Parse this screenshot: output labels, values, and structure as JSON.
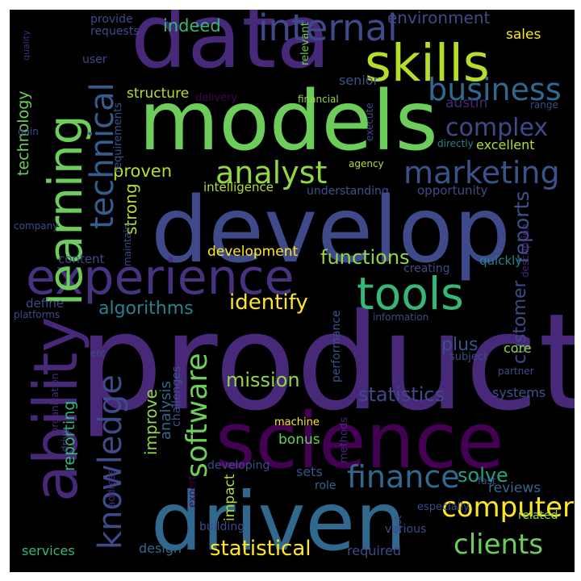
{
  "words": [
    {
      "text": "product",
      "color": "#482878"
    },
    {
      "text": "develop",
      "color": "#3e4a89"
    },
    {
      "text": "models",
      "color": "#6ccd5a"
    },
    {
      "text": "data",
      "color": "#482878"
    },
    {
      "text": "science",
      "color": "#440154"
    },
    {
      "text": "driven",
      "color": "#31688e"
    },
    {
      "text": "experience",
      "color": "#46327e"
    },
    {
      "text": "skills",
      "color": "#b5de2b"
    },
    {
      "text": "learning",
      "color": "#6ccd5a"
    },
    {
      "text": "ability",
      "color": "#482878"
    },
    {
      "text": "tools",
      "color": "#35b779"
    },
    {
      "text": "knowledge",
      "color": "#3e4a89"
    },
    {
      "text": "technical",
      "color": "#365c8d"
    },
    {
      "text": "internal",
      "color": "#3e4a89"
    },
    {
      "text": "business",
      "color": "#31688e"
    },
    {
      "text": "analyst",
      "color": "#90d743"
    },
    {
      "text": "marketing",
      "color": "#3b528b"
    },
    {
      "text": "finance",
      "color": "#31688e"
    },
    {
      "text": "software",
      "color": "#6ccd5a"
    },
    {
      "text": "computer",
      "color": "#fde725"
    },
    {
      "text": "clients",
      "color": "#6ccd5a"
    },
    {
      "text": "complex",
      "color": "#3e4a89"
    },
    {
      "text": "statistical",
      "color": "#fde725"
    },
    {
      "text": "identify",
      "color": "#fde725"
    },
    {
      "text": "algorithms",
      "color": "#26828e"
    },
    {
      "text": "functions",
      "color": "#90d743"
    },
    {
      "text": "mission",
      "color": "#90d743"
    },
    {
      "text": "statistics",
      "color": "#3e4a89"
    },
    {
      "text": "reports",
      "color": "#3b528b"
    },
    {
      "text": "technology",
      "color": "#6ccd5a"
    },
    {
      "text": "environment",
      "color": "#3e4a89"
    },
    {
      "text": "indeed",
      "color": "#35b779"
    },
    {
      "text": "proven",
      "color": "#b5de2b"
    },
    {
      "text": "strong",
      "color": "#b5de2b"
    },
    {
      "text": "customer",
      "color": "#3e4a89"
    },
    {
      "text": "development",
      "color": "#fde725"
    },
    {
      "text": "improve",
      "color": "#90d743"
    },
    {
      "text": "analysis",
      "color": "#31688e"
    },
    {
      "text": "reporting",
      "color": "#35b779"
    },
    {
      "text": "solve",
      "color": "#20a486"
    },
    {
      "text": "plus",
      "color": "#3b528b"
    },
    {
      "text": "sets",
      "color": "#3b528b"
    },
    {
      "text": "design",
      "color": "#31688e"
    },
    {
      "text": "required",
      "color": "#3e4a89"
    },
    {
      "text": "services",
      "color": "#35b779"
    },
    {
      "text": "impact",
      "color": "#b5de2b"
    },
    {
      "text": "structure",
      "color": "#b5de2b"
    },
    {
      "text": "core",
      "color": "#90d743"
    },
    {
      "text": "systems",
      "color": "#3b528b"
    },
    {
      "text": "reviews",
      "color": "#31688e"
    },
    {
      "text": "bonus",
      "color": "#6ccd5a"
    },
    {
      "text": "content",
      "color": "#3e4a89"
    },
    {
      "text": "define",
      "color": "#3e4a89"
    },
    {
      "text": "senior",
      "color": "#3b528b"
    },
    {
      "text": "austin",
      "color": "#482878"
    },
    {
      "text": "sales",
      "color": "#fde725"
    },
    {
      "text": "excellent",
      "color": "#b5de2b"
    },
    {
      "text": "opportunity",
      "color": "#3e4a89"
    },
    {
      "text": "intelligence",
      "color": "#b5de2b"
    },
    {
      "text": "understanding",
      "color": "#3b528b"
    },
    {
      "text": "quickly",
      "color": "#26828e"
    },
    {
      "text": "creating",
      "color": "#3e4a89"
    },
    {
      "text": "machine",
      "color": "#fde725"
    },
    {
      "text": "developing",
      "color": "#3e4a89"
    },
    {
      "text": "role",
      "color": "#31688e"
    },
    {
      "text": "especially",
      "color": "#3e4a89"
    },
    {
      "text": "related",
      "color": "#90d743"
    },
    {
      "text": "various",
      "color": "#3e4a89"
    },
    {
      "text": "building",
      "color": "#3e4a89"
    },
    {
      "text": "user",
      "color": "#3e4a89"
    },
    {
      "text": "provide",
      "color": "#3e4a89"
    },
    {
      "text": "requests",
      "color": "#3e4a89"
    },
    {
      "text": "delivery",
      "color": "#440154"
    },
    {
      "text": "financial",
      "color": "#90d743"
    },
    {
      "text": "agency",
      "color": "#b5de2b"
    },
    {
      "text": "information",
      "color": "#3e4a89"
    },
    {
      "text": "subject",
      "color": "#3e4a89"
    },
    {
      "text": "partner",
      "color": "#3e4a89"
    },
    {
      "text": "platforms",
      "color": "#3e4a89"
    },
    {
      "text": "company",
      "color": "#3e4a89"
    },
    {
      "text": "etc",
      "color": "#3e4a89"
    },
    {
      "text": "fast",
      "color": "#3e4a89"
    },
    {
      "text": "directly",
      "color": "#26828e"
    },
    {
      "text": "range",
      "color": "#3e4a89"
    },
    {
      "text": "relevant",
      "color": "#6ccd5a"
    },
    {
      "text": "execute",
      "color": "#3e4a89"
    },
    {
      "text": "quality",
      "color": "#482878"
    },
    {
      "text": "gain",
      "color": "#3e4a89"
    },
    {
      "text": "requirements",
      "color": "#3b528b"
    },
    {
      "text": "maintain",
      "color": "#3e4a89"
    },
    {
      "text": "description",
      "color": "#482878"
    },
    {
      "text": "performance",
      "color": "#3b528b"
    },
    {
      "text": "challenges",
      "color": "#3b528b"
    },
    {
      "text": "methods",
      "color": "#482878"
    },
    {
      "text": "organization",
      "color": "#482878"
    },
    {
      "text": "drive",
      "color": "#3e4a89"
    },
    {
      "text": "address",
      "color": "#482878"
    },
    {
      "text": "expert",
      "color": "#440154"
    },
    {
      "text": "test",
      "color": "#3b528b"
    }
  ]
}
